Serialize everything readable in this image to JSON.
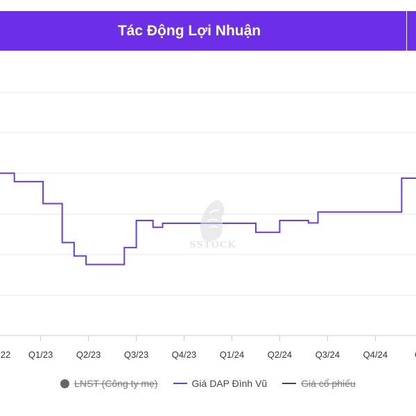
{
  "header": {
    "title": "Tác Động Lợi Nhuận",
    "background_color": "#6d2ee8"
  },
  "watermark": {
    "text": "SSTOCK",
    "icon": "horse-head-logo"
  },
  "legend": {
    "items": [
      {
        "label": "LNST (Công ty mẹ)",
        "marker": "circle",
        "color": "#666666",
        "hidden": true
      },
      {
        "label": "Giá DAP Đình Vũ",
        "marker": "line",
        "color": "#6d3ae8",
        "hidden": false
      },
      {
        "label": "Giá cổ phiếu",
        "marker": "line",
        "color": "#444444",
        "hidden": true
      }
    ]
  },
  "chart_data": {
    "type": "line",
    "step": true,
    "grid": true,
    "y_ticks_visible": false,
    "x_tick_labels": [
      "22",
      "Q1/23",
      "Q2/23",
      "Q3/23",
      "Q4/23",
      "Q1/24",
      "Q2/24",
      "Q3/24",
      "Q4/24",
      "Q"
    ],
    "x_tick_quarters": [
      -0.2,
      0,
      1,
      2,
      3,
      4,
      5,
      6,
      7,
      8
    ],
    "x_range": [
      -0.85,
      7.85
    ],
    "y_range": [
      -1.4,
      7.0
    ],
    "series": [
      {
        "name": "Giá DAP Đình Vũ",
        "color": "#6d3ae8",
        "points": [
          [
            -0.85,
            3.4
          ],
          [
            -0.55,
            3.4
          ],
          [
            -0.55,
            3.15
          ],
          [
            0.05,
            3.15
          ],
          [
            0.05,
            2.5
          ],
          [
            0.45,
            2.5
          ],
          [
            0.45,
            1.35
          ],
          [
            0.7,
            1.35
          ],
          [
            0.7,
            0.95
          ],
          [
            0.95,
            0.95
          ],
          [
            0.95,
            0.7
          ],
          [
            1.75,
            0.7
          ],
          [
            1.75,
            1.2
          ],
          [
            2.0,
            1.2
          ],
          [
            2.0,
            2.0
          ],
          [
            2.35,
            2.0
          ],
          [
            2.35,
            1.8
          ],
          [
            2.55,
            1.8
          ],
          [
            2.55,
            1.92
          ],
          [
            4.5,
            1.92
          ],
          [
            4.5,
            1.65
          ],
          [
            5.0,
            1.65
          ],
          [
            5.0,
            2.0
          ],
          [
            5.6,
            2.0
          ],
          [
            5.6,
            1.93
          ],
          [
            5.8,
            1.93
          ],
          [
            5.8,
            2.25
          ],
          [
            7.55,
            2.25
          ],
          [
            7.55,
            3.25
          ],
          [
            7.85,
            3.25
          ]
        ]
      }
    ]
  }
}
